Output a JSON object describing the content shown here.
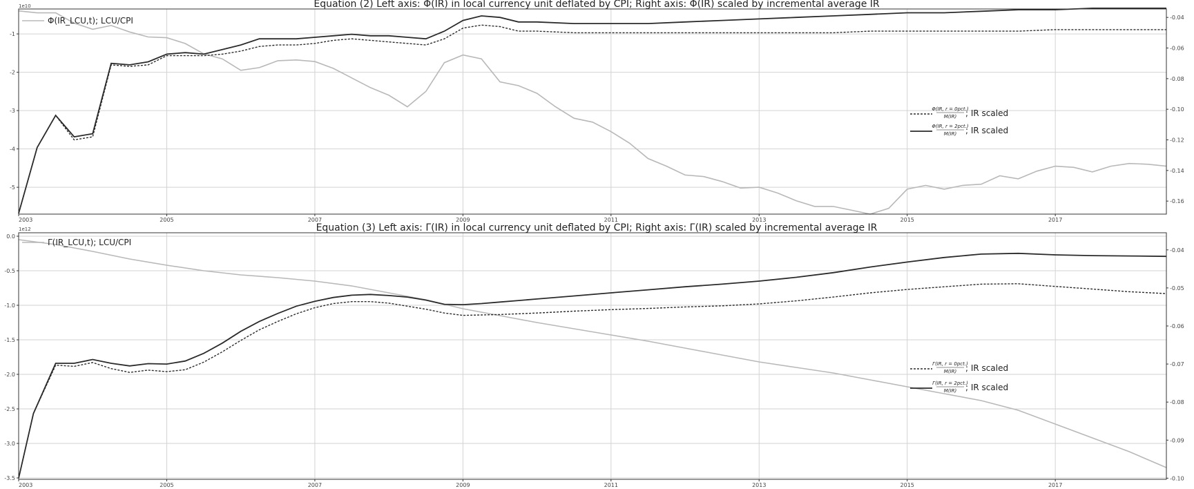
{
  "colors": {
    "primary": "#2a2a2a",
    "secondary": "#b8b8b8",
    "grid": "#d2d2d2"
  },
  "chart_data": [
    {
      "type": "line",
      "title": "Equation (2) Left axis: Φ(IR) in local currency unit deflated by CPI; Right axis: Φ(IR) scaled by incremental average IR",
      "left_axis_exponent": "1e10",
      "x_ticks": [
        "2003",
        "2005",
        "2007",
        "2009",
        "2011",
        "2013",
        "2015",
        "2017"
      ],
      "xlim": [
        2003,
        2018.5
      ],
      "left_ticks": [
        "-1",
        "-2",
        "-3",
        "-4",
        "-5"
      ],
      "ylim_left": [
        -5.7,
        -0.35
      ],
      "right_ticks": [
        "-0.04",
        "-0.06",
        "-0.08",
        "-0.10",
        "-0.12",
        "-0.14",
        "-0.16"
      ],
      "ylim_right": [
        -0.1685,
        -0.0345
      ],
      "grid": true,
      "legend_left": {
        "position": "top-left",
        "label": "Φ(IR_LCU,t); LCU/CPI"
      },
      "legend_right": {
        "position": "center-right",
        "entries": [
          {
            "frac_num": "Φ(IR, r = 0pct.)",
            "frac_den": "M(IR)",
            "suffix": "; IR scaled",
            "style": "dashed"
          },
          {
            "frac_num": "Φ(IR, r = 2pct.)",
            "frac_den": "M(IR)",
            "suffix": "; IR scaled",
            "style": "solid"
          }
        ]
      },
      "series": [
        {
          "name": "Φ(IR_LCU,t); LCU/CPI",
          "axis": "left",
          "style": "light",
          "x": [
            2003,
            2003.25,
            2003.5,
            2003.75,
            2004,
            2004.25,
            2004.5,
            2004.75,
            2005,
            2005.25,
            2005.5,
            2005.75,
            2006,
            2006.25,
            2006.5,
            2006.75,
            2007,
            2007.25,
            2007.5,
            2007.75,
            2008,
            2008.25,
            2008.5,
            2008.75,
            2009,
            2009.25,
            2009.5,
            2009.75,
            2010,
            2010.25,
            2010.5,
            2010.75,
            2011,
            2011.25,
            2011.5,
            2011.75,
            2012,
            2012.25,
            2012.5,
            2012.75,
            2013,
            2013.25,
            2013.5,
            2013.75,
            2014,
            2014.25,
            2014.5,
            2014.75,
            2015,
            2015.25,
            2015.5,
            2015.75,
            2016,
            2016.25,
            2016.5,
            2016.75,
            2017,
            2017.25,
            2017.5,
            2017.75,
            2018,
            2018.25,
            2018.5
          ],
          "values": [
            -0.4,
            -0.45,
            -0.45,
            -0.72,
            -0.88,
            -0.78,
            -0.95,
            -1.08,
            -1.1,
            -1.25,
            -1.52,
            -1.65,
            -1.95,
            -1.88,
            -1.7,
            -1.68,
            -1.72,
            -1.9,
            -2.15,
            -2.4,
            -2.6,
            -2.9,
            -2.5,
            -1.75,
            -1.55,
            -1.65,
            -2.25,
            -2.35,
            -2.55,
            -2.9,
            -3.2,
            -3.3,
            -3.55,
            -3.85,
            -4.25,
            -4.45,
            -4.68,
            -4.72,
            -4.85,
            -5.02,
            -5.0,
            -5.15,
            -5.35,
            -5.5,
            -5.5,
            -5.6,
            -5.7,
            -5.55,
            -5.05,
            -4.95,
            -5.05,
            -4.95,
            -4.92,
            -4.7,
            -4.78,
            -4.58,
            -4.45,
            -4.48,
            -4.6,
            -4.45,
            -4.38,
            -4.4,
            -4.45
          ]
        },
        {
          "name": "Φ(IR, r = 0pct.)/M(IR); IR scaled",
          "axis": "right",
          "style": "dashed",
          "x": [
            2003,
            2003.25,
            2003.5,
            2003.75,
            2004,
            2004.25,
            2004.5,
            2004.75,
            2005,
            2005.25,
            2005.5,
            2005.75,
            2006,
            2006.25,
            2006.5,
            2006.75,
            2007,
            2007.25,
            2007.5,
            2007.75,
            2008,
            2008.25,
            2008.5,
            2008.75,
            2009,
            2009.25,
            2009.5,
            2009.75,
            2010,
            2010.5,
            2011,
            2011.5,
            2012,
            2012.5,
            2013,
            2013.5,
            2014,
            2014.5,
            2015,
            2015.5,
            2016,
            2016.5,
            2017,
            2017.5,
            2018,
            2018.5
          ],
          "values": [
            -0.168,
            -0.125,
            -0.104,
            -0.12,
            -0.118,
            -0.071,
            -0.072,
            -0.071,
            -0.065,
            -0.065,
            -0.065,
            -0.064,
            -0.062,
            -0.059,
            -0.058,
            -0.058,
            -0.057,
            -0.055,
            -0.054,
            -0.055,
            -0.056,
            -0.057,
            -0.058,
            -0.054,
            -0.047,
            -0.045,
            -0.046,
            -0.049,
            -0.049,
            -0.05,
            -0.05,
            -0.05,
            -0.05,
            -0.05,
            -0.05,
            -0.05,
            -0.05,
            -0.049,
            -0.049,
            -0.049,
            -0.049,
            -0.049,
            -0.048,
            -0.048,
            -0.048,
            -0.048
          ]
        },
        {
          "name": "Φ(IR, r = 2pct.)/M(IR); IR scaled",
          "axis": "right",
          "style": "solid",
          "x": [
            2003,
            2003.25,
            2003.5,
            2003.75,
            2004,
            2004.25,
            2004.5,
            2004.75,
            2005,
            2005.25,
            2005.5,
            2005.75,
            2006,
            2006.25,
            2006.5,
            2006.75,
            2007,
            2007.25,
            2007.5,
            2007.75,
            2008,
            2008.25,
            2008.5,
            2008.75,
            2009,
            2009.25,
            2009.5,
            2009.75,
            2010,
            2010.5,
            2011,
            2011.5,
            2012,
            2012.5,
            2013,
            2013.5,
            2014,
            2014.5,
            2015,
            2015.5,
            2016,
            2016.5,
            2017,
            2017.5,
            2018,
            2018.5
          ],
          "values": [
            -0.168,
            -0.125,
            -0.104,
            -0.118,
            -0.116,
            -0.07,
            -0.071,
            -0.069,
            -0.064,
            -0.063,
            -0.064,
            -0.061,
            -0.058,
            -0.054,
            -0.054,
            -0.054,
            -0.053,
            -0.052,
            -0.051,
            -0.052,
            -0.052,
            -0.053,
            -0.054,
            -0.049,
            -0.042,
            -0.039,
            -0.04,
            -0.043,
            -0.043,
            -0.044,
            -0.044,
            -0.044,
            -0.043,
            -0.042,
            -0.041,
            -0.04,
            -0.039,
            -0.038,
            -0.037,
            -0.037,
            -0.036,
            -0.035,
            -0.035,
            -0.034,
            -0.034,
            -0.034
          ]
        }
      ]
    },
    {
      "type": "line",
      "title": "Equation (3) Left axis: Γ(IR) in local currency unit deflated by CPI; Right axis: Γ(IR) scaled by incremental average IR",
      "left_axis_exponent": "1e12",
      "x_ticks": [
        "2003",
        "2005",
        "2007",
        "2009",
        "2011",
        "2013",
        "2015",
        "2017"
      ],
      "xlim": [
        2003,
        2018.5
      ],
      "left_ticks": [
        "0.0",
        "-0.5",
        "-1.0",
        "-1.5",
        "-2.0",
        "-2.5",
        "-3.0",
        "-3.5"
      ],
      "ylim_left": [
        -3.52,
        0.05
      ],
      "right_ticks": [
        "-0.04",
        "-0.05",
        "-0.06",
        "-0.07",
        "-0.08",
        "-0.09",
        "-0.10"
      ],
      "ylim_right": [
        -0.1003,
        -0.0355
      ],
      "grid": true,
      "legend_left": {
        "position": "top-left",
        "label": "Γ(IR_LCU,t); LCU/CPI"
      },
      "legend_right": {
        "position": "center-right",
        "entries": [
          {
            "frac_num": "Γ(IR, r = 0pct.)",
            "frac_den": "M(IR)",
            "suffix": "; IR scaled",
            "style": "dashed"
          },
          {
            "frac_num": "Γ(IR, r = 2pct.)",
            "frac_den": "M(IR)",
            "suffix": "; IR scaled",
            "style": "solid"
          }
        ]
      },
      "series": [
        {
          "name": "Γ(IR_LCU,t); LCU/CPI",
          "axis": "left",
          "style": "light",
          "x": [
            2003,
            2003.5,
            2004,
            2004.5,
            2005,
            2005.5,
            2006,
            2006.5,
            2007,
            2007.5,
            2008,
            2008.5,
            2009,
            2009.5,
            2010,
            2010.5,
            2011,
            2011.5,
            2012,
            2012.5,
            2013,
            2013.5,
            2014,
            2014.5,
            2015,
            2015.5,
            2016,
            2016.5,
            2017,
            2017.5,
            2018,
            2018.5
          ],
          "values": [
            -0.05,
            -0.12,
            -0.22,
            -0.33,
            -0.42,
            -0.5,
            -0.56,
            -0.6,
            -0.65,
            -0.72,
            -0.82,
            -0.92,
            -1.05,
            -1.15,
            -1.25,
            -1.34,
            -1.43,
            -1.52,
            -1.62,
            -1.72,
            -1.82,
            -1.9,
            -1.98,
            -2.08,
            -2.18,
            -2.28,
            -2.38,
            -2.52,
            -2.72,
            -2.92,
            -3.12,
            -3.35
          ]
        },
        {
          "name": "Γ(IR, r = 0pct.)/M(IR); IR scaled",
          "axis": "right",
          "style": "dashed",
          "x": [
            2003,
            2003.2,
            2003.5,
            2003.75,
            2004,
            2004.25,
            2004.5,
            2004.75,
            2005,
            2005.25,
            2005.5,
            2005.75,
            2006,
            2006.25,
            2006.5,
            2006.75,
            2007,
            2007.25,
            2007.5,
            2007.75,
            2008,
            2008.25,
            2008.5,
            2008.75,
            2009,
            2009.25,
            2009.5,
            2009.75,
            2010,
            2010.5,
            2011,
            2011.5,
            2012,
            2012.5,
            2013,
            2013.5,
            2014,
            2014.5,
            2015,
            2015.5,
            2016,
            2016.5,
            2017,
            2017.5,
            2018,
            2018.5
          ],
          "values": [
            -0.1,
            -0.083,
            -0.0703,
            -0.0706,
            -0.0696,
            -0.0712,
            -0.0722,
            -0.0716,
            -0.072,
            -0.0715,
            -0.0695,
            -0.0668,
            -0.0638,
            -0.061,
            -0.0588,
            -0.0568,
            -0.0552,
            -0.0541,
            -0.0536,
            -0.0536,
            -0.054,
            -0.0548,
            -0.0556,
            -0.0566,
            -0.0572,
            -0.0571,
            -0.057,
            -0.0568,
            -0.0566,
            -0.0561,
            -0.0557,
            -0.0554,
            -0.055,
            -0.0547,
            -0.0542,
            -0.0534,
            -0.0524,
            -0.0513,
            -0.0504,
            -0.0497,
            -0.049,
            -0.0489,
            -0.0496,
            -0.0503,
            -0.051,
            -0.0515
          ]
        },
        {
          "name": "Γ(IR, r = 2pct.)/M(IR); IR scaled",
          "axis": "right",
          "style": "solid",
          "x": [
            2003,
            2003.2,
            2003.5,
            2003.75,
            2004,
            2004.25,
            2004.5,
            2004.75,
            2005,
            2005.25,
            2005.5,
            2005.75,
            2006,
            2006.25,
            2006.5,
            2006.75,
            2007,
            2007.25,
            2007.5,
            2007.75,
            2008,
            2008.25,
            2008.5,
            2008.75,
            2009,
            2009.25,
            2009.5,
            2009.75,
            2010,
            2010.5,
            2011,
            2011.5,
            2012,
            2012.5,
            2013,
            2013.5,
            2014,
            2014.5,
            2015,
            2015.5,
            2016,
            2016.5,
            2017,
            2017.5,
            2018,
            2018.5
          ],
          "values": [
            -0.1,
            -0.083,
            -0.0698,
            -0.0698,
            -0.0688,
            -0.0698,
            -0.0705,
            -0.0699,
            -0.07,
            -0.0692,
            -0.0672,
            -0.0645,
            -0.0614,
            -0.0588,
            -0.0567,
            -0.0548,
            -0.0535,
            -0.0525,
            -0.0519,
            -0.0517,
            -0.052,
            -0.0524,
            -0.0532,
            -0.0543,
            -0.0544,
            -0.0541,
            -0.0537,
            -0.0533,
            -0.0529,
            -0.0521,
            -0.0513,
            -0.0505,
            -0.0497,
            -0.049,
            -0.0482,
            -0.0472,
            -0.046,
            -0.0445,
            -0.0432,
            -0.042,
            -0.0411,
            -0.0409,
            -0.0413,
            -0.0415,
            -0.0416,
            -0.0417
          ]
        }
      ]
    }
  ]
}
